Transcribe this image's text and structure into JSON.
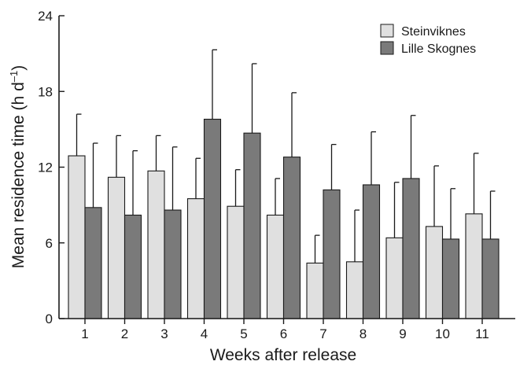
{
  "chart_data": {
    "type": "bar",
    "xlabel": "Weeks after release",
    "ylabel_main": "Mean residence time (h d",
    "ylabel_sup": "–1",
    "ylabel_close": ")",
    "ylim": [
      0,
      24
    ],
    "yticks": [
      0,
      6,
      12,
      18,
      24
    ],
    "categories": [
      "1",
      "2",
      "3",
      "4",
      "5",
      "6",
      "7",
      "8",
      "9",
      "10",
      "11"
    ],
    "legend_position": "top-right",
    "grid": false,
    "series": [
      {
        "name": "Steinviknes",
        "color": "#e0e0e0",
        "values": [
          12.9,
          11.2,
          11.7,
          9.5,
          8.9,
          8.2,
          4.4,
          4.5,
          6.4,
          7.3,
          8.3
        ],
        "errors": [
          3.3,
          3.3,
          2.8,
          3.2,
          2.9,
          2.9,
          2.2,
          4.1,
          4.4,
          4.8,
          4.8
        ]
      },
      {
        "name": "Lille Skognes",
        "color": "#7a7a7a",
        "values": [
          8.8,
          8.2,
          8.6,
          15.8,
          14.7,
          12.8,
          10.2,
          10.6,
          11.1,
          6.3,
          6.3
        ],
        "errors": [
          5.1,
          5.1,
          5.0,
          5.5,
          5.5,
          5.1,
          3.6,
          4.2,
          5.0,
          4.0,
          3.8
        ]
      }
    ]
  }
}
